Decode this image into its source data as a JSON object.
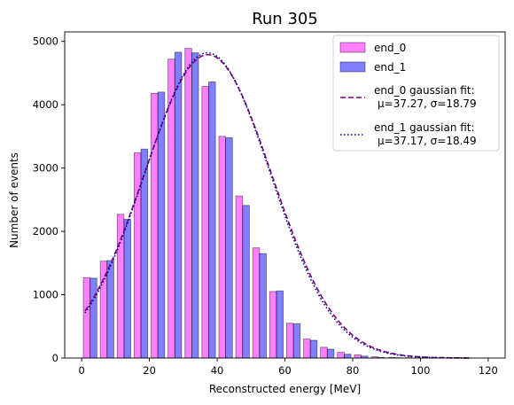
{
  "chart_data": {
    "type": "bar",
    "title": "Run 305",
    "xlabel": "Reconstructed energy [MeV]",
    "ylabel": "Number of events",
    "xlim": [
      -5,
      125
    ],
    "ylim": [
      0,
      5150
    ],
    "xticks": [
      0,
      20,
      40,
      60,
      80,
      100,
      120
    ],
    "yticks": [
      0,
      1000,
      2000,
      3000,
      4000,
      5000
    ],
    "bin_width": 5,
    "bin_centers": [
      2.5,
      7.5,
      12.5,
      17.5,
      22.5,
      27.5,
      32.5,
      37.5,
      42.5,
      47.5,
      52.5,
      57.5,
      62.5,
      67.5,
      72.5,
      77.5,
      82.5,
      87.5,
      92.5,
      97.5,
      102.5,
      107.5,
      112.5
    ],
    "series": [
      {
        "name": "end_0",
        "color": "#ff00ff",
        "values": [
          1270,
          1530,
          2270,
          3240,
          4180,
          4720,
          4890,
          4290,
          3500,
          2560,
          1740,
          1050,
          550,
          300,
          170,
          90,
          50,
          20,
          10,
          5,
          0,
          0,
          0
        ]
      },
      {
        "name": "end_1",
        "color": "#0000ff",
        "values": [
          1260,
          1540,
          2190,
          3300,
          4200,
          4830,
          4820,
          4360,
          3480,
          2410,
          1650,
          1060,
          540,
          280,
          140,
          60,
          30,
          10,
          5,
          0,
          0,
          0,
          0
        ]
      }
    ],
    "fits": [
      {
        "name": "end_0 gaussian fit:",
        "params": "μ=37.27, σ=18.79",
        "mu": 37.27,
        "sigma": 18.79,
        "amplitude": 4790,
        "style": "dashed",
        "color": "#800080"
      },
      {
        "name": "end_1 gaussian fit:",
        "params": "μ=37.17, σ=18.49",
        "mu": 37.17,
        "sigma": 18.49,
        "amplitude": 4820,
        "style": "dotted",
        "color": "#00008b"
      }
    ],
    "fit_range": [
      1,
      115
    ],
    "legend_position": "top-right",
    "grid": false
  }
}
